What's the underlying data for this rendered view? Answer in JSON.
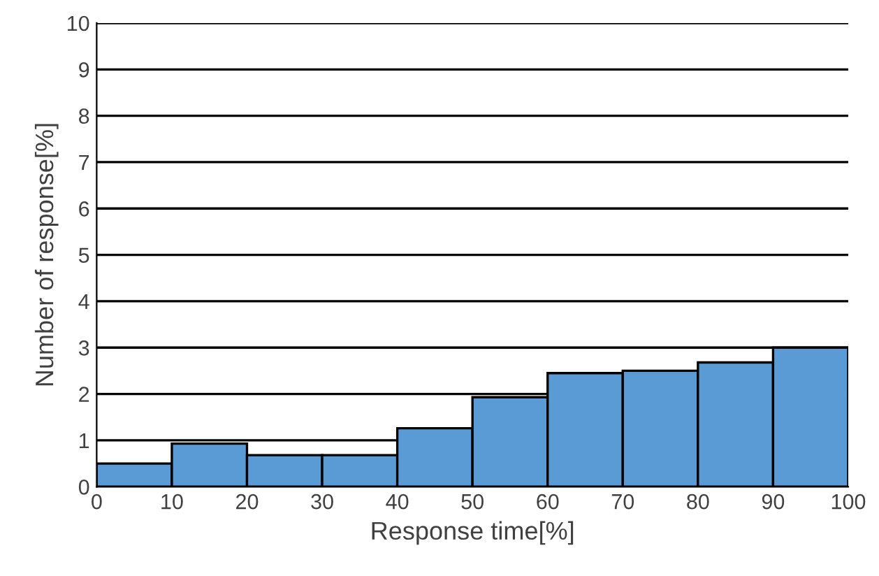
{
  "chart_data": {
    "type": "histogram",
    "xlabel": "Response time[%]",
    "ylabel": "Number of response[%]",
    "bins": [
      0,
      10,
      20,
      30,
      40,
      50,
      60,
      70,
      80,
      90,
      100
    ],
    "values": [
      0.5,
      0.93,
      0.68,
      0.68,
      1.26,
      1.93,
      2.45,
      2.5,
      2.68,
      3.0
    ],
    "color": "#5b9bd5",
    "xlim": [
      0,
      100
    ],
    "xticks": [
      0,
      10,
      20,
      30,
      40,
      50,
      60,
      70,
      80,
      90,
      100
    ],
    "ylim": [
      0,
      10
    ],
    "yticks": [
      0,
      1,
      2,
      3,
      4,
      5,
      6,
      7,
      8,
      9,
      10
    ],
    "grid": "y"
  }
}
